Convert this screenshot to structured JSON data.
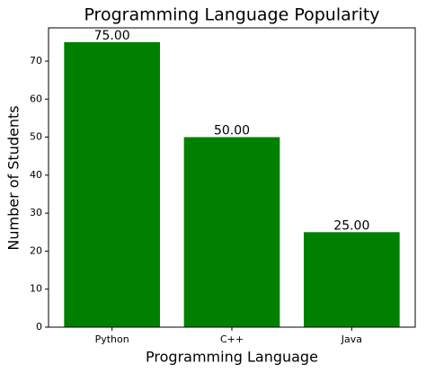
{
  "chart_data": {
    "type": "bar",
    "title": "Programming Language Popularity",
    "x_label": "Programming Language",
    "y_label": "Number of Students",
    "categories": [
      "Python",
      "C++",
      "Java"
    ],
    "values": [
      75,
      50,
      25
    ],
    "value_labels": [
      "75.00",
      "50.00",
      "25.00"
    ],
    "color": "#008000",
    "ylim": [
      0,
      78.75
    ],
    "yticks": [
      0,
      10,
      20,
      30,
      40,
      50,
      60,
      70
    ],
    "grid": false
  }
}
